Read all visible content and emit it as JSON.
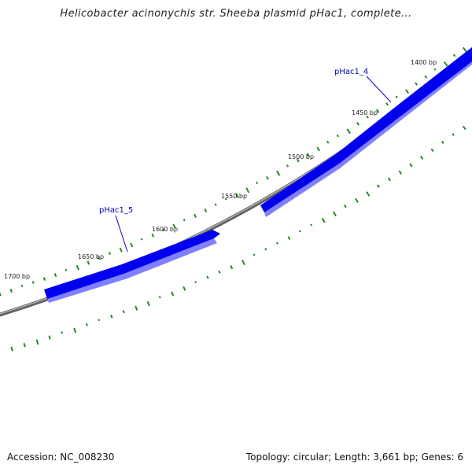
{
  "header": {
    "title": "Helicobacter acinonychis str. Sheeba plasmid pHac1, complete..."
  },
  "footer": {
    "accession": "Accession: NC_008230",
    "summary": "Topology: circular; Length: 3,661 bp; Genes: 6"
  },
  "map": {
    "tick_labels": [
      "1400 bp",
      "1450 bp",
      "1500 bp",
      "1550 bp",
      "1600 bp",
      "1650 bp",
      "1700 bp"
    ],
    "genes": [
      {
        "name": "pHac1_4",
        "color": "#0000ee"
      },
      {
        "name": "pHac1_5",
        "color": "#0000ee"
      }
    ],
    "colors": {
      "gene_fill": "#0000ee",
      "gene_shadow": "#8888ff",
      "backbone": "#808080",
      "gc_ticks": "#228b22",
      "label_line": "#0000cc"
    }
  }
}
